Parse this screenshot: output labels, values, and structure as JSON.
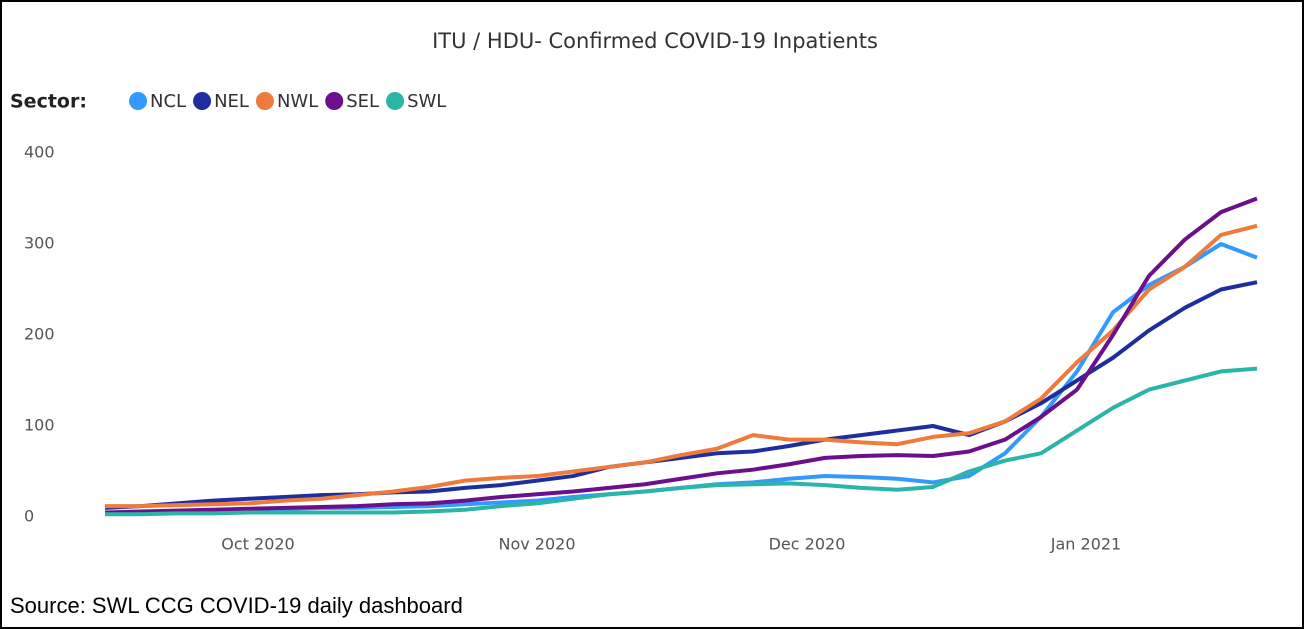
{
  "chart_data": {
    "type": "line",
    "title": "ITU / HDU- Confirmed COVID-19 Inpatients",
    "legend_title": "Sector:",
    "legend_position": "top-left",
    "source": "Source: SWL CCG COVID-19 daily dashboard",
    "x": [
      0,
      4,
      8,
      12,
      16,
      20,
      24,
      28,
      32,
      36,
      40,
      44,
      48,
      52,
      56,
      60,
      64,
      68,
      72,
      76,
      80,
      84,
      88,
      92,
      96,
      100,
      104,
      108,
      112,
      116,
      120,
      124,
      128
    ],
    "xlim": [
      0,
      130
    ],
    "xticks": [
      {
        "value": 17,
        "label": "Oct 2020"
      },
      {
        "value": 48,
        "label": "Nov 2020"
      },
      {
        "value": 78,
        "label": "Dec 2020"
      },
      {
        "value": 109,
        "label": "Jan 2021"
      }
    ],
    "ylim": [
      0,
      400
    ],
    "yticks": [
      0,
      100,
      200,
      300,
      400
    ],
    "grid": false,
    "series": [
      {
        "name": "NCL",
        "color": "#3399ff",
        "values": [
          5,
          5,
          6,
          7,
          8,
          9,
          10,
          10,
          11,
          12,
          14,
          16,
          18,
          22,
          25,
          28,
          32,
          36,
          38,
          42,
          45,
          44,
          42,
          38,
          45,
          70,
          110,
          160,
          225,
          255,
          275,
          300,
          285
        ]
      },
      {
        "name": "NEL",
        "color": "#1f2e9e",
        "values": [
          10,
          12,
          15,
          18,
          20,
          22,
          24,
          25,
          27,
          28,
          32,
          35,
          40,
          45,
          55,
          60,
          65,
          70,
          72,
          78,
          85,
          90,
          95,
          100,
          90,
          105,
          125,
          150,
          175,
          205,
          230,
          250,
          258
        ]
      },
      {
        "name": "NWL",
        "color": "#ee7a3c",
        "values": [
          12,
          12,
          13,
          14,
          15,
          18,
          20,
          24,
          28,
          33,
          40,
          43,
          45,
          50,
          55,
          60,
          68,
          75,
          90,
          85,
          85,
          82,
          80,
          88,
          92,
          105,
          130,
          170,
          205,
          250,
          275,
          310,
          320
        ]
      },
      {
        "name": "SEL",
        "color": "#6b0f8a",
        "values": [
          5,
          6,
          7,
          8,
          9,
          10,
          11,
          12,
          14,
          15,
          18,
          22,
          25,
          28,
          32,
          36,
          42,
          48,
          52,
          58,
          65,
          67,
          68,
          67,
          72,
          85,
          110,
          140,
          200,
          265,
          305,
          335,
          350
        ]
      },
      {
        "name": "SWL",
        "color": "#2bb5a8",
        "values": [
          3,
          3,
          4,
          4,
          5,
          5,
          5,
          5,
          5,
          6,
          8,
          12,
          15,
          20,
          25,
          28,
          32,
          35,
          36,
          37,
          35,
          32,
          30,
          33,
          50,
          62,
          70,
          95,
          120,
          140,
          150,
          160,
          163
        ]
      }
    ]
  }
}
